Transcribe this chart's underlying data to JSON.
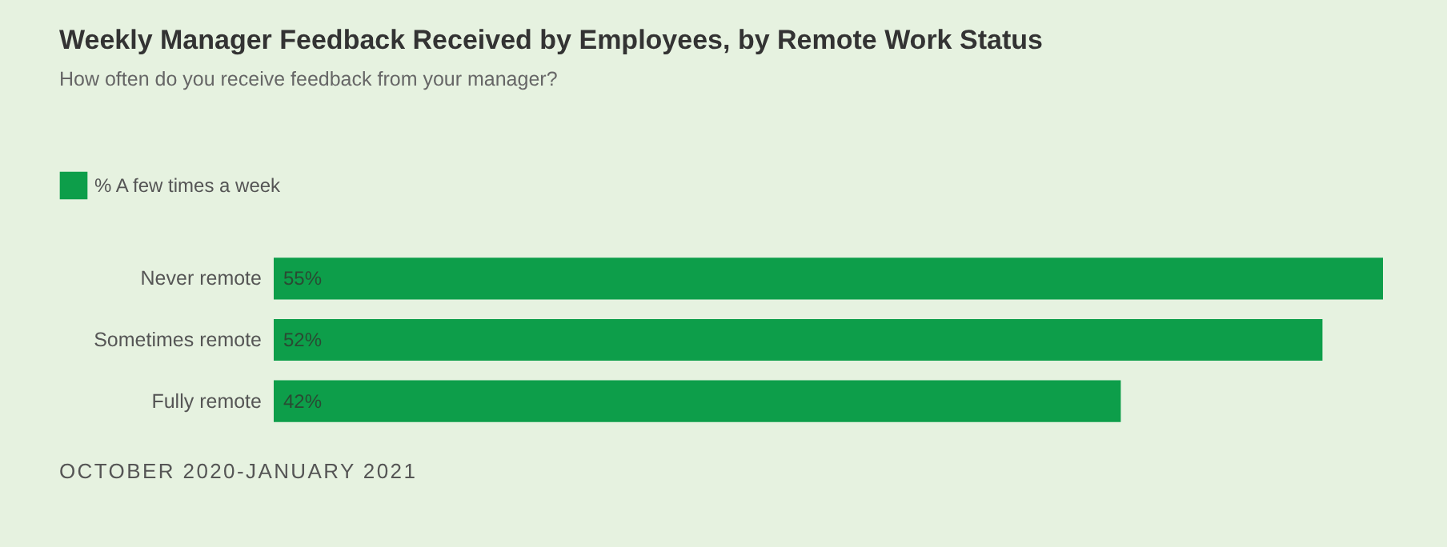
{
  "chart_data": {
    "type": "bar",
    "orientation": "horizontal",
    "title": "Weekly Manager Feedback Received by Employees, by Remote Work Status",
    "subtitle": "How often do you receive feedback from your manager?",
    "categories": [
      "Never remote",
      "Sometimes remote",
      "Fully remote"
    ],
    "series": [
      {
        "name": "% A few times a week",
        "color": "#0d9e4a",
        "values": [
          55,
          52,
          42
        ],
        "value_labels": [
          "55%",
          "52%",
          "42%"
        ]
      }
    ],
    "legend": "top left",
    "annotations": [
      "OCTOBER 2020-JANUARY 2021"
    ]
  }
}
